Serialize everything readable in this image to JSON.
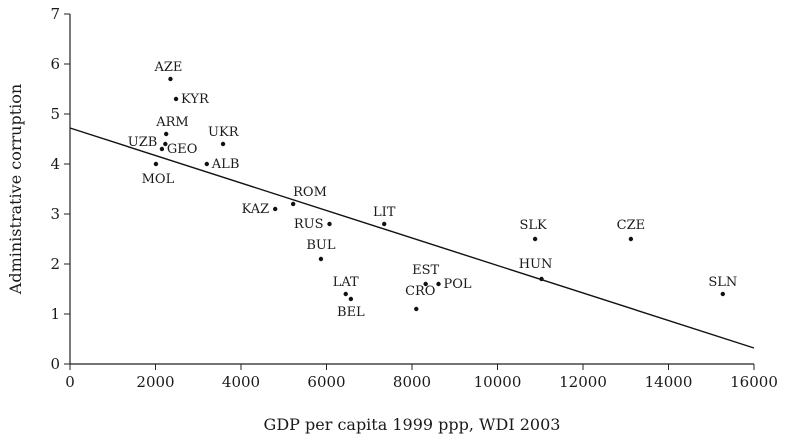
{
  "chart_data": {
    "type": "scatter",
    "xlabel": "GDP per capita 1999 ppp, WDI 2003",
    "ylabel": "Administrative corruption",
    "xlim": [
      0,
      16000
    ],
    "ylim": [
      0,
      7
    ],
    "xticks": [
      0,
      2000,
      4000,
      6000,
      8000,
      10000,
      12000,
      14000,
      16000
    ],
    "yticks": [
      0,
      1,
      2,
      3,
      4,
      5,
      6,
      7
    ],
    "grid": false,
    "points": [
      {
        "label": "AZE",
        "x": 2350,
        "y": 5.7
      },
      {
        "label": "KYR",
        "x": 2480,
        "y": 5.3
      },
      {
        "label": "ARM",
        "x": 2250,
        "y": 4.6
      },
      {
        "label": "UZB",
        "x": 2230,
        "y": 4.4
      },
      {
        "label": "GEO",
        "x": 2150,
        "y": 4.3
      },
      {
        "label": "UKR",
        "x": 3580,
        "y": 4.4
      },
      {
        "label": "ALB",
        "x": 3200,
        "y": 4.0
      },
      {
        "label": "MOL",
        "x": 2010,
        "y": 4.0
      },
      {
        "label": "KAZ",
        "x": 4800,
        "y": 3.1
      },
      {
        "label": "ROM",
        "x": 5220,
        "y": 3.2
      },
      {
        "label": "RUS",
        "x": 6070,
        "y": 2.8
      },
      {
        "label": "LIT",
        "x": 7350,
        "y": 2.8
      },
      {
        "label": "BUL",
        "x": 5870,
        "y": 2.1
      },
      {
        "label": "LAT",
        "x": 6450,
        "y": 1.4
      },
      {
        "label": "BEL",
        "x": 6570,
        "y": 1.3
      },
      {
        "label": "EST",
        "x": 8320,
        "y": 1.6
      },
      {
        "label": "POL",
        "x": 8620,
        "y": 1.6
      },
      {
        "label": "CRO",
        "x": 8100,
        "y": 1.1
      },
      {
        "label": "SLK",
        "x": 10880,
        "y": 2.5
      },
      {
        "label": "HUN",
        "x": 11030,
        "y": 1.7
      },
      {
        "label": "CZE",
        "x": 13120,
        "y": 2.5
      },
      {
        "label": "SLN",
        "x": 15270,
        "y": 1.4
      }
    ],
    "trend_line": {
      "x": [
        0,
        16000
      ],
      "y": [
        4.72,
        0.32
      ]
    }
  }
}
